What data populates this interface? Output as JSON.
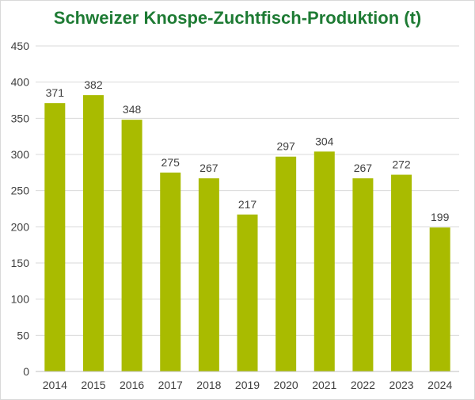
{
  "chart_data": {
    "type": "bar",
    "title": "Schweizer Knospe-Zuchtfisch-Produktion (t)",
    "categories": [
      "2014",
      "2015",
      "2016",
      "2017",
      "2018",
      "2019",
      "2020",
      "2021",
      "2022",
      "2023",
      "2024"
    ],
    "values": [
      371,
      382,
      348,
      275,
      267,
      217,
      297,
      304,
      267,
      272,
      199
    ],
    "data_labels": [
      "371",
      "382",
      "348",
      "275",
      "267",
      "217",
      "297",
      "304",
      "267",
      "272",
      "199"
    ],
    "y_ticks": [
      "0",
      "50",
      "100",
      "150",
      "200",
      "250",
      "300",
      "350",
      "400",
      "450"
    ],
    "ylim": [
      0,
      450
    ],
    "grid": true,
    "legend": "none"
  },
  "colors": {
    "title": "#1e7b34",
    "bar": "#a9bb00",
    "grid": "#d9d9d9",
    "axis": "#bfbfbf"
  }
}
